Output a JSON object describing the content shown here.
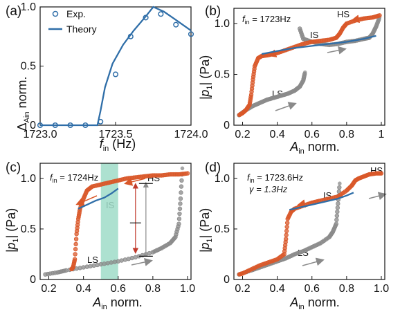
{
  "colors": {
    "theory": "#2f6ea8",
    "exp_circle": "#2f6ea8",
    "hs": "#d9582a",
    "ls": "#8a8a8a",
    "band": "#9fdcc8",
    "arrow_hs": "#d9582a",
    "arrow_ls": "#8a8a8a",
    "red_bar": "#c0392b",
    "grey_bar": "#8a8a8a"
  },
  "panels": {
    "a": {
      "label": "(a)"
    },
    "b": {
      "label": "(b)"
    },
    "c": {
      "label": "(c)"
    },
    "d": {
      "label": "(d)"
    }
  },
  "chart_data": [
    {
      "id": "a",
      "type": "scatter",
      "xlabel_main": "f",
      "xlabel_sub": "in",
      "xlabel_unit": " (Hz)",
      "ylabel_main": "Δ",
      "ylabel_sub": "Ain",
      "ylabel_unit": " norm.",
      "xlim": [
        1723.0,
        1724.0
      ],
      "ylim": [
        0,
        1.0
      ],
      "xticks": [
        1723.0,
        1723.5,
        1724.0
      ],
      "xtick_labels": [
        "1723.0",
        "1723.5",
        "1724.0"
      ],
      "yticks": [
        0,
        0.5,
        1.0
      ],
      "ytick_labels": [
        "0",
        "0.5",
        "1.0"
      ],
      "legend": {
        "exp": "Exp.",
        "theory": "Theory",
        "position": "top-left"
      },
      "series": [
        {
          "name": "Exp.",
          "x": [
            1723.0,
            1723.1,
            1723.2,
            1723.3,
            1723.4,
            1723.5,
            1723.6,
            1723.7,
            1723.8,
            1723.9,
            1724.0
          ],
          "y": [
            0,
            0,
            0,
            0,
            0.03,
            0.43,
            0.75,
            0.91,
            0.94,
            0.85,
            0.77
          ]
        },
        {
          "name": "Theory",
          "x": [
            1723.0,
            1723.38,
            1723.4,
            1723.43,
            1723.48,
            1723.55,
            1723.62,
            1723.7,
            1723.75,
            1723.82,
            1723.9,
            1724.0
          ],
          "y": [
            0,
            0,
            0.12,
            0.32,
            0.52,
            0.68,
            0.8,
            0.92,
            1.0,
            0.96,
            0.89,
            0.8
          ]
        }
      ]
    },
    {
      "id": "b",
      "type": "scatter",
      "xlabel_main": "A",
      "xlabel_sub": "in",
      "xlabel_unit": " norm.",
      "ylabel_main": "|p",
      "ylabel_sub": "1",
      "ylabel_unit": "| (Pa)",
      "xlim": [
        0.15,
        1.02
      ],
      "ylim": [
        0,
        1.15
      ],
      "xticks": [
        0.2,
        0.4,
        0.6,
        0.8,
        1.0
      ],
      "xtick_labels": [
        "0.2",
        "0.4",
        "0.6",
        "0.8",
        "1"
      ],
      "yticks": [
        0,
        0.5,
        1.0
      ],
      "ytick_labels": [
        "0",
        "0.5",
        "1.0"
      ],
      "freq_main": "f",
      "freq_sub": "in",
      "freq_value": " = 1723Hz",
      "labels": {
        "hs": "HS",
        "is": "IS",
        "ls": "LS"
      },
      "series": [
        {
          "name": "LS",
          "x": [
            0.18,
            0.22,
            0.26,
            0.3,
            0.34,
            0.38,
            0.42,
            0.46,
            0.5,
            0.53,
            0.55,
            0.56
          ],
          "y": [
            0.1,
            0.15,
            0.19,
            0.22,
            0.25,
            0.27,
            0.29,
            0.31,
            0.34,
            0.38,
            0.44,
            0.52
          ]
        },
        {
          "name": "IS",
          "x": [
            0.53,
            0.55,
            0.6,
            0.65,
            0.7,
            0.75,
            0.8,
            0.85,
            0.9,
            0.93,
            0.95,
            0.97,
            0.99
          ],
          "y": [
            0.95,
            0.85,
            0.82,
            0.8,
            0.79,
            0.8,
            0.82,
            0.83,
            0.85,
            0.86,
            0.9,
            0.97,
            1.06
          ]
        },
        {
          "name": "HS",
          "x": [
            0.99,
            0.95,
            0.9,
            0.85,
            0.8,
            0.78,
            0.76,
            0.74,
            0.7,
            0.65,
            0.6,
            0.55,
            0.5,
            0.45,
            0.4,
            0.35,
            0.31,
            0.29,
            0.27,
            0.26,
            0.25,
            0.24,
            0.22,
            0.2,
            0.18
          ],
          "y": [
            1.08,
            1.06,
            1.05,
            1.03,
            1.0,
            0.96,
            0.9,
            0.86,
            0.84,
            0.83,
            0.82,
            0.8,
            0.77,
            0.74,
            0.71,
            0.69,
            0.68,
            0.66,
            0.58,
            0.45,
            0.3,
            0.2,
            0.15,
            0.12,
            0.1
          ]
        },
        {
          "name": "Theory",
          "x": [
            0.31,
            0.4,
            0.5,
            0.6,
            0.7,
            0.8,
            0.9,
            0.97
          ],
          "y": [
            0.7,
            0.73,
            0.76,
            0.78,
            0.8,
            0.82,
            0.85,
            0.88
          ]
        }
      ]
    },
    {
      "id": "c",
      "type": "scatter",
      "xlabel_main": "A",
      "xlabel_sub": "in",
      "xlabel_unit": " norm.",
      "ylabel_main": "|p",
      "ylabel_sub": "1",
      "ylabel_unit": "| (Pa)",
      "xlim": [
        0.15,
        1.02
      ],
      "ylim": [
        0,
        1.15
      ],
      "xticks": [
        0.2,
        0.4,
        0.6,
        0.8,
        1.0
      ],
      "xtick_labels": [
        "0.2",
        "0.4",
        "0.6",
        "0.8",
        "1.0"
      ],
      "yticks": [
        0,
        0.5,
        1.0
      ],
      "ytick_labels": [
        "0",
        "0.5",
        "1.0"
      ],
      "freq_main": "f",
      "freq_sub": "in",
      "freq_value": " = 1724Hz",
      "labels": {
        "hs": "HS",
        "is": "IS",
        "ls": "LS"
      },
      "band": [
        0.5,
        0.6
      ],
      "bars": {
        "x_grey": 0.76,
        "x_red": 0.7,
        "grey_range": [
          0.23,
          0.95
        ],
        "red_range": [
          0.27,
          0.94
        ],
        "mid": 0.56
      },
      "series": [
        {
          "name": "LS",
          "x": [
            0.18,
            0.25,
            0.3,
            0.4,
            0.5,
            0.6,
            0.7,
            0.8,
            0.85,
            0.9,
            0.93,
            0.95,
            0.96,
            0.97
          ],
          "y": [
            0.05,
            0.07,
            0.09,
            0.12,
            0.15,
            0.18,
            0.22,
            0.27,
            0.31,
            0.36,
            0.42,
            0.55,
            0.8,
            1.1
          ]
        },
        {
          "name": "HS",
          "x": [
            1.0,
            0.95,
            0.9,
            0.85,
            0.8,
            0.75,
            0.7,
            0.65,
            0.6,
            0.55,
            0.5,
            0.45,
            0.42,
            0.4,
            0.38,
            0.37,
            0.36,
            0.35,
            0.34,
            0.33
          ],
          "y": [
            1.05,
            1.04,
            1.04,
            1.03,
            1.03,
            1.02,
            1.01,
            1.0,
            0.98,
            0.96,
            0.94,
            0.92,
            0.88,
            0.8,
            0.7,
            0.6,
            0.45,
            0.2,
            0.12,
            0.1
          ]
        },
        {
          "name": "Theory",
          "x": [
            0.37,
            0.42,
            0.47,
            0.52,
            0.56,
            0.6
          ],
          "y": [
            0.7,
            0.74,
            0.78,
            0.81,
            0.85,
            0.9
          ]
        }
      ]
    },
    {
      "id": "d",
      "type": "scatter",
      "xlabel_main": "A",
      "xlabel_sub": "in",
      "xlabel_unit": " norm.",
      "ylabel_main": "|p",
      "ylabel_sub": "1",
      "ylabel_unit": "| (Pa)",
      "xlim": [
        0.15,
        1.02
      ],
      "ylim": [
        0,
        1.15
      ],
      "xticks": [
        0.2,
        0.4,
        0.6,
        0.8,
        1.0
      ],
      "xtick_labels": [
        "0.2",
        "0.4",
        "0.6",
        "0.8",
        "1.0"
      ],
      "yticks": [
        0,
        0.5,
        1.0
      ],
      "ytick_labels": [
        "0",
        "0.5",
        "1.0"
      ],
      "freq_main": "f",
      "freq_sub": "in",
      "freq_value": " = 1723.6Hz",
      "gamma_text": "γ = 1.3Hz",
      "labels": {
        "hs": "HS",
        "is": "IS",
        "ls": "LS"
      },
      "series": [
        {
          "name": "LS",
          "x": [
            0.18,
            0.25,
            0.3,
            0.35,
            0.4,
            0.45,
            0.5,
            0.55,
            0.6,
            0.65,
            0.7,
            0.72,
            0.74,
            0.75,
            0.76
          ],
          "y": [
            0.05,
            0.09,
            0.12,
            0.15,
            0.18,
            0.21,
            0.25,
            0.28,
            0.32,
            0.36,
            0.42,
            0.47,
            0.55,
            0.75,
            0.95
          ]
        },
        {
          "name": "HS",
          "x": [
            1.0,
            0.97,
            0.93,
            0.9,
            0.87,
            0.85,
            0.83,
            0.8,
            0.75,
            0.7,
            0.65,
            0.6,
            0.55,
            0.5,
            0.48,
            0.46,
            0.45,
            0.44,
            0.4,
            0.35,
            0.3,
            0.25,
            0.2,
            0.18
          ],
          "y": [
            1.05,
            1.05,
            1.04,
            1.02,
            1.0,
            0.98,
            0.93,
            0.88,
            0.82,
            0.8,
            0.78,
            0.76,
            0.73,
            0.7,
            0.67,
            0.6,
            0.4,
            0.25,
            0.2,
            0.17,
            0.14,
            0.1,
            0.06,
            0.05
          ]
        },
        {
          "name": "Theory",
          "x": [
            0.47,
            0.55,
            0.6,
            0.65,
            0.7,
            0.75,
            0.8,
            0.84
          ],
          "y": [
            0.69,
            0.72,
            0.74,
            0.76,
            0.78,
            0.8,
            0.83,
            0.86
          ]
        }
      ]
    }
  ]
}
